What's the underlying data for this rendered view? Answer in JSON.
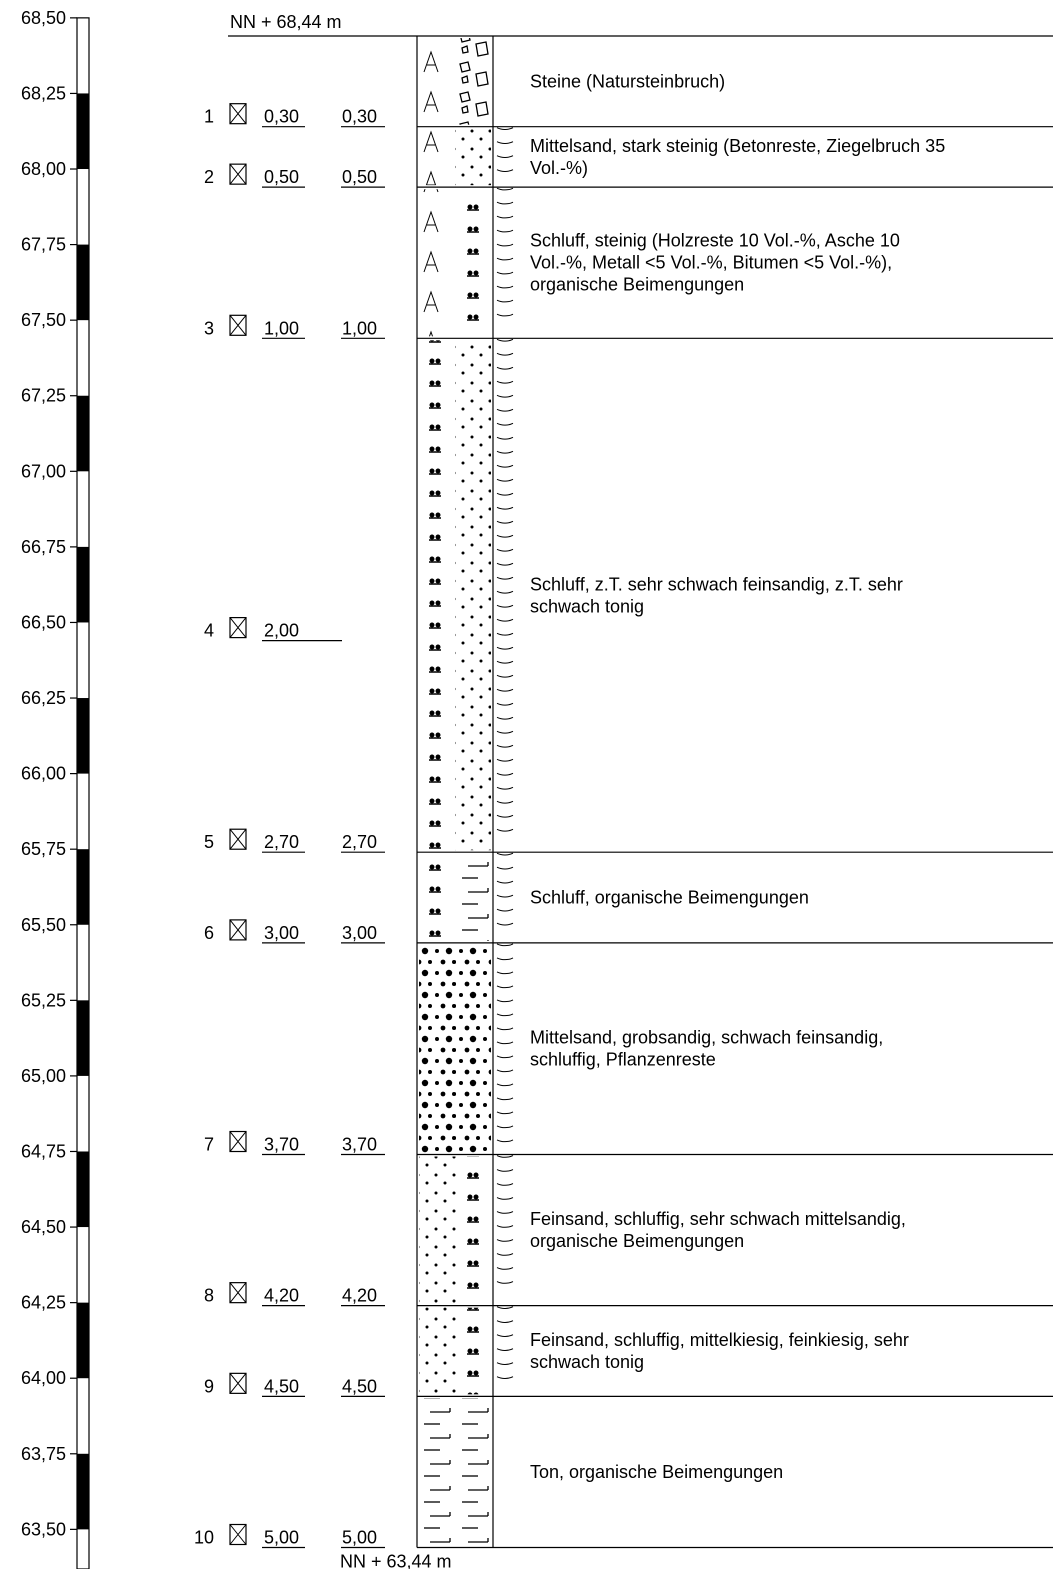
{
  "elevation_scale": {
    "ticks": [
      {
        "value": 68.5,
        "label": "68,50"
      },
      {
        "value": 68.25,
        "label": "68,25"
      },
      {
        "value": 68.0,
        "label": "68,00"
      },
      {
        "value": 67.75,
        "label": "67,75"
      },
      {
        "value": 67.5,
        "label": "67,50"
      },
      {
        "value": 67.25,
        "label": "67,25"
      },
      {
        "value": 67.0,
        "label": "67,00"
      },
      {
        "value": 66.75,
        "label": "66,75"
      },
      {
        "value": 66.5,
        "label": "66,50"
      },
      {
        "value": 66.25,
        "label": "66,25"
      },
      {
        "value": 66.0,
        "label": "66,00"
      },
      {
        "value": 65.75,
        "label": "65,75"
      },
      {
        "value": 65.5,
        "label": "65,50"
      },
      {
        "value": 65.25,
        "label": "65,25"
      },
      {
        "value": 65.0,
        "label": "65,00"
      },
      {
        "value": 64.75,
        "label": "64,75"
      },
      {
        "value": 64.5,
        "label": "64,50"
      },
      {
        "value": 64.25,
        "label": "64,25"
      },
      {
        "value": 64.0,
        "label": "64,00"
      },
      {
        "value": 63.75,
        "label": "63,75"
      },
      {
        "value": 63.5,
        "label": "63,50"
      }
    ]
  },
  "top_elevation": {
    "value": 68.44,
    "label": "NN + 68,44 m"
  },
  "bottom_elevation": {
    "value": 63.44,
    "label": "NN + 63,44 m"
  },
  "samples": [
    {
      "number": "1",
      "depth": {
        "value": 0.3,
        "label": "0,30"
      },
      "layer_bottom": "0,30"
    },
    {
      "number": "2",
      "depth": {
        "value": 0.5,
        "label": "0,50"
      },
      "layer_bottom": "0,50"
    },
    {
      "number": "3",
      "depth": {
        "value": 1.0,
        "label": "1,00"
      },
      "layer_bottom": "1,00"
    },
    {
      "number": "4",
      "depth": {
        "value": 2.0,
        "label": "2,00"
      }
    },
    {
      "number": "5",
      "depth": {
        "value": 2.7,
        "label": "2,70"
      },
      "layer_bottom": "2,70"
    },
    {
      "number": "6",
      "depth": {
        "value": 3.0,
        "label": "3,00"
      },
      "layer_bottom": "3,00"
    },
    {
      "number": "7",
      "depth": {
        "value": 3.7,
        "label": "3,70"
      },
      "layer_bottom": "3,70"
    },
    {
      "number": "8",
      "depth": {
        "value": 4.2,
        "label": "4,20"
      },
      "layer_bottom": "4,20"
    },
    {
      "number": "9",
      "depth": {
        "value": 4.5,
        "label": "4,50"
      },
      "layer_bottom": "4,50"
    },
    {
      "number": "10",
      "depth": {
        "value": 5.0,
        "label": "5,00"
      },
      "layer_bottom": "5,00"
    }
  ],
  "layers": [
    {
      "bottom": 0.3,
      "description": [
        "Steine (Natursteinbruch)"
      ]
    },
    {
      "bottom": 0.5,
      "description": [
        "Mittelsand, stark steinig (Betonreste, Ziegelbruch 35",
        "Vol.-%)"
      ]
    },
    {
      "bottom": 1.0,
      "description": [
        "Schluff, steinig (Holzreste 10 Vol.-%, Asche 10",
        "Vol.-%, Metall <5 Vol.-%, Bitumen <5 Vol.-%),",
        "organische Beimengungen"
      ]
    },
    {
      "bottom": 2.7,
      "description": [
        "Schluff, z.T. sehr schwach feinsandig, z.T. sehr",
        "schwach tonig"
      ]
    },
    {
      "bottom": 3.0,
      "description": [
        "Schluff, organische Beimengungen"
      ]
    },
    {
      "bottom": 3.7,
      "description": [
        "Mittelsand, grobsandig, schwach feinsandig,",
        "schluffig, Pflanzenreste"
      ]
    },
    {
      "bottom": 4.2,
      "description": [
        "Feinsand, schluffig, sehr schwach mittelsandig,",
        "organische Beimengungen"
      ]
    },
    {
      "bottom": 4.5,
      "description": [
        "Feinsand, schluffig, mittelkiesig, feinkiesig, sehr",
        "schwach tonig"
      ]
    },
    {
      "bottom": 5.0,
      "description": [
        "Ton, organische Beimengungen"
      ]
    }
  ]
}
